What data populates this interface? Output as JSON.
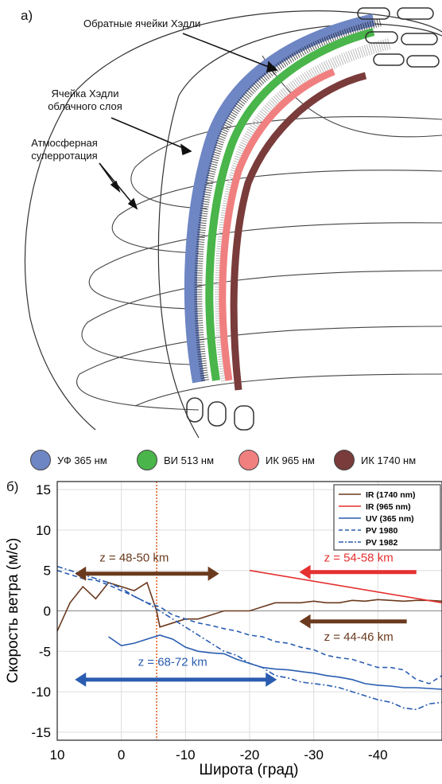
{
  "panel_a": {
    "letter": "a)",
    "labels": {
      "reverse_cells": "Обратные ячейки Хэдли",
      "cloud_cell_1": "Ячейка Хэдли",
      "cloud_cell_2": "облачного слоя",
      "superrot_1": "Атмосферная",
      "superrot_2": "суперротация"
    }
  },
  "legend": [
    {
      "label": "УФ 365 нм",
      "color": "#6f86c4"
    },
    {
      "label": "ВИ 513 нм",
      "color": "#49b54a"
    },
    {
      "label": "ИК 965 нм",
      "color": "#f08080"
    },
    {
      "label": "ИК 1740 нм",
      "color": "#7a3b3b"
    }
  ],
  "panel_b": {
    "letter": "б)",
    "ylabel": "Скорость ветра (м/с)",
    "xlabel": "Широта (град)",
    "annotations": [
      {
        "text": "z = 48-50 km",
        "color": "#6b3a1e"
      },
      {
        "text": "z = 54-58 km",
        "color": "#e53030"
      },
      {
        "text": "z = 44-46 km",
        "color": "#6b3a1e"
      },
      {
        "text": "z = 68-72 km",
        "color": "#2a5db0"
      }
    ]
  },
  "chart_data": {
    "type": "line",
    "xlim": [
      10,
      -50
    ],
    "ylim": [
      -16,
      16
    ],
    "xticks": [
      10,
      0,
      -10,
      -20,
      -30,
      -40
    ],
    "yticks": [
      15,
      10,
      5,
      0,
      -5,
      -10,
      -15
    ],
    "grid": true,
    "legend_position": "top-right",
    "vline_x": -5.5,
    "series": [
      {
        "name": "IR (1740 nm)",
        "color": "#6b3a1e",
        "style": "solid",
        "x": [
          10,
          8,
          6,
          4,
          2,
          0,
          -2,
          -4,
          -5.5,
          -6,
          -8,
          -10,
          -12,
          -14,
          -16,
          -18,
          -20,
          -22,
          -24,
          -26,
          -28,
          -30,
          -32,
          -34,
          -36,
          -38,
          -40,
          -42,
          -44,
          -46,
          -48,
          -50
        ],
        "y": [
          -2.5,
          1,
          3,
          1.5,
          3.5,
          3,
          2.5,
          3.5,
          0,
          -2,
          -1.5,
          -1,
          -1,
          -0.5,
          0,
          0,
          0,
          0.5,
          1,
          1,
          1,
          1.2,
          1,
          1,
          1.3,
          1.2,
          1.4,
          1.3,
          1.2,
          1.3,
          1.3,
          1.2
        ]
      },
      {
        "name": "IR (965 nm)",
        "color": "#e53030",
        "style": "solid",
        "x": [
          -20,
          -50
        ],
        "y": [
          5,
          1
        ]
      },
      {
        "name": "UV (365 nm)",
        "color": "#2a5db0",
        "style": "solid",
        "x": [
          2,
          0,
          -2,
          -4,
          -6,
          -8,
          -10,
          -12,
          -14,
          -16,
          -18,
          -20,
          -22,
          -24,
          -26,
          -28,
          -30,
          -32,
          -34,
          -36,
          -38,
          -40,
          -42,
          -44,
          -46,
          -48,
          -50
        ],
        "y": [
          -3.2,
          -4.3,
          -4,
          -3.5,
          -3,
          -3.5,
          -4.5,
          -5,
          -5.2,
          -5.3,
          -6,
          -6.5,
          -7,
          -7.2,
          -7.3,
          -7.5,
          -7.7,
          -8,
          -8.2,
          -8.5,
          -9,
          -9.2,
          -9.3,
          -9.5,
          -9.5,
          -9.6,
          -9.7
        ]
      },
      {
        "name": "PV 1980",
        "color": "#2a5db0",
        "style": "dashed",
        "x": [
          10,
          8,
          6,
          4,
          2,
          0,
          -2,
          -4,
          -6,
          -8,
          -10,
          -12,
          -14,
          -16,
          -18,
          -20,
          -22,
          -24,
          -26,
          -28,
          -30,
          -32,
          -34,
          -36,
          -38,
          -40,
          -42,
          -44,
          -46,
          -48,
          -50
        ],
        "y": [
          5,
          4.5,
          4,
          3.8,
          3.2,
          2.5,
          1.8,
          1,
          0.5,
          -0.5,
          -1,
          -1.5,
          -1.8,
          -2.2,
          -2.5,
          -3,
          -3.2,
          -3.8,
          -4,
          -4.5,
          -4.8,
          -5.5,
          -5.8,
          -6,
          -6.5,
          -7,
          -7,
          -7.3,
          -8.5,
          -9,
          -8
        ]
      },
      {
        "name": "PV 1982",
        "color": "#2a5db0",
        "style": "dashdot",
        "x": [
          10,
          8,
          6,
          4,
          2,
          0,
          -2,
          -4,
          -6,
          -8,
          -10,
          -12,
          -14,
          -16,
          -18,
          -20,
          -22,
          -24,
          -26,
          -28,
          -30,
          -32,
          -34,
          -36,
          -38,
          -40,
          -42,
          -44,
          -46,
          -48,
          -50
        ],
        "y": [
          5.5,
          5,
          4.5,
          4,
          3.5,
          2.8,
          1.8,
          1,
          0,
          -1,
          -2,
          -3,
          -4,
          -5,
          -5.5,
          -6.5,
          -7,
          -8,
          -8.3,
          -8.8,
          -9,
          -9.2,
          -9.5,
          -10,
          -10.5,
          -11,
          -11.3,
          -12,
          -12.2,
          -11.5,
          -11.3
        ]
      }
    ]
  }
}
